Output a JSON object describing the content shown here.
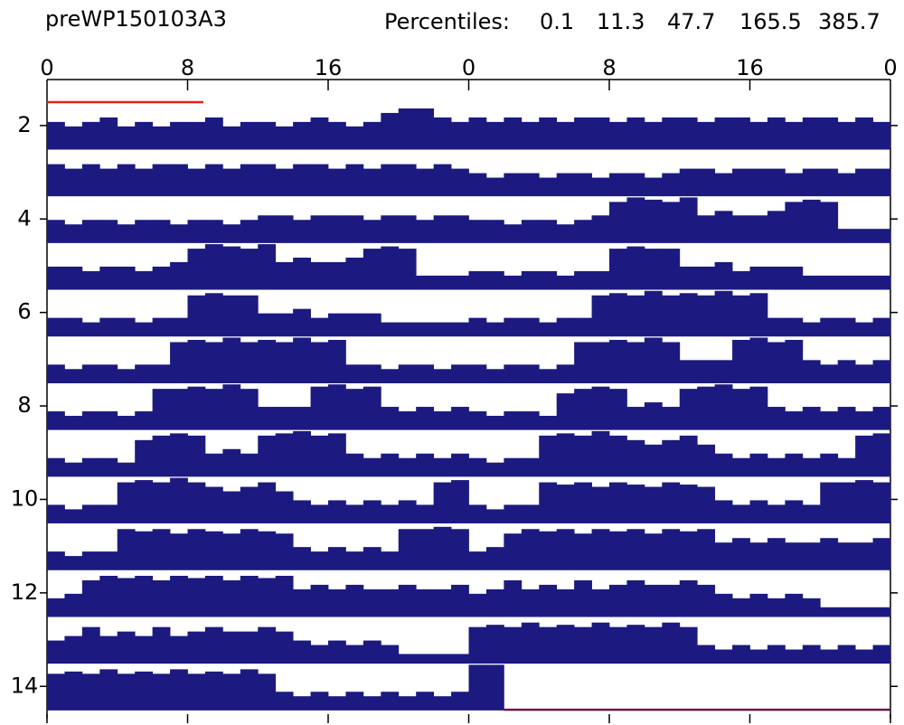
{
  "chart_data": {
    "type": "actogram",
    "title": "preWP150103A3",
    "percentiles_label": "Percentiles:",
    "percentiles": [
      0.1,
      11.3,
      47.7,
      165.5,
      385.7
    ],
    "xlim": [
      0,
      48
    ],
    "xticks": [
      0,
      8,
      16,
      {
        "value": 24,
        "label": "0"
      },
      {
        "value": 32,
        "label": "8"
      },
      {
        "value": 40,
        "label": "16"
      },
      {
        "value": 48,
        "label": "0"
      }
    ],
    "row_labels": [
      2,
      null,
      4,
      null,
      6,
      null,
      8,
      null,
      10,
      null,
      12,
      null,
      14
    ],
    "color": "#1c1a80",
    "missing_color": "#e8211c",
    "days": [
      [
        0.6,
        0.5,
        0.6,
        0.7,
        0.5,
        0.6,
        0.5,
        0.6,
        0.6,
        0.7,
        0.5,
        0.6,
        0.6,
        0.5,
        0.6,
        0.7,
        0.6,
        0.5,
        0.6,
        0.8,
        0.9,
        0.9,
        0.7,
        0.6
      ],
      [
        0.7,
        0.6,
        0.7,
        0.6,
        0.7,
        0.6,
        0.7,
        0.7,
        0.6,
        0.7,
        0.6,
        0.7,
        0.7,
        0.6,
        0.7,
        0.7,
        0.6,
        0.7,
        0.6,
        0.7,
        0.7,
        0.6,
        0.7,
        0.6
      ],
      [
        0.5,
        0.4,
        0.5,
        0.5,
        0.4,
        0.5,
        0.5,
        0.4,
        0.5,
        0.5,
        0.4,
        0.5,
        0.6,
        0.6,
        0.5,
        0.6,
        0.6,
        0.6,
        0.5,
        0.6,
        0.6,
        0.5,
        0.6,
        0.6
      ],
      [
        0.5,
        0.5,
        0.4,
        0.5,
        0.5,
        0.4,
        0.5,
        0.6,
        0.9,
        1,
        0.95,
        0.9,
        1,
        0.6,
        0.7,
        0.6,
        0.6,
        0.7,
        0.9,
        0.95,
        0.9,
        0.3,
        0.3,
        0.3
      ],
      [
        0.4,
        0.4,
        0.3,
        0.4,
        0.4,
        0.3,
        0.4,
        0.4,
        0.9,
        0.95,
        0.9,
        0.9,
        0.5,
        0.5,
        0.6,
        0.4,
        0.5,
        0.5,
        0.5,
        0.3,
        0.3,
        0.3,
        0.3,
        0.3
      ],
      [
        0.4,
        0.3,
        0.4,
        0.4,
        0.3,
        0.4,
        0.4,
        0.9,
        0.95,
        0.9,
        1,
        0.9,
        0.95,
        0.9,
        1,
        0.9,
        0.95,
        0.4,
        0.4,
        0.3,
        0.4,
        0.4,
        0.3,
        0.4
      ],
      [
        0.4,
        0.3,
        0.4,
        0.4,
        0.3,
        0.4,
        0.9,
        0.9,
        0.95,
        0.9,
        1,
        0.9,
        0.5,
        0.5,
        0.5,
        0.95,
        1,
        0.9,
        0.95,
        0.5,
        0.4,
        0.5,
        0.4,
        0.5
      ],
      [
        0.4,
        0.3,
        0.4,
        0.4,
        0.3,
        0.8,
        0.9,
        0.95,
        0.9,
        0.5,
        0.6,
        0.5,
        0.9,
        0.95,
        1,
        0.9,
        0.95,
        0.5,
        0.4,
        0.5,
        0.4,
        0.5,
        0.4,
        0.5
      ],
      [
        0.4,
        0.3,
        0.4,
        0.4,
        0.9,
        0.95,
        0.9,
        1,
        0.9,
        0.8,
        0.7,
        0.8,
        0.9,
        0.7,
        0.5,
        0.4,
        0.5,
        0.4,
        0.5,
        0.4,
        0.5,
        0.4,
        0.9,
        0.95
      ],
      [
        0.4,
        0.3,
        0.4,
        0.4,
        0.9,
        0.85,
        0.9,
        0.8,
        0.9,
        0.85,
        0.8,
        0.9,
        0.85,
        0.8,
        0.5,
        0.4,
        0.5,
        0.4,
        0.5,
        0.4,
        0.9,
        0.9,
        0.95,
        0.9
      ],
      [
        0.4,
        0.5,
        0.8,
        0.9,
        0.85,
        0.9,
        0.8,
        0.9,
        0.85,
        0.9,
        0.8,
        0.9,
        0.85,
        0.9,
        0.6,
        0.7,
        0.6,
        0.7,
        0.6,
        0.6,
        0.7,
        0.6,
        0.6,
        0.7
      ],
      [
        0.5,
        0.6,
        0.8,
        0.6,
        0.7,
        0.6,
        0.8,
        0.6,
        0.7,
        0.8,
        0.7,
        0.7,
        0.8,
        0.7,
        0.5,
        0.4,
        0.5,
        0.4,
        0.5,
        0.4,
        0.2,
        0.2,
        0.2,
        0.2
      ],
      [
        0.8,
        0.85,
        0.8,
        0.9,
        0.8,
        0.85,
        0.8,
        0.9,
        0.8,
        0.85,
        0.8,
        0.9,
        0.8,
        0.4,
        0.3,
        0.4,
        0.3,
        0.4,
        0.3,
        0.4,
        0.3,
        0.4,
        0.3,
        0.4
      ],
      [
        1,
        1,
        null,
        null,
        null,
        null,
        null,
        null,
        null,
        null,
        null,
        null,
        null,
        null,
        null,
        null,
        null,
        null,
        null,
        null,
        null,
        null,
        null,
        null
      ]
    ]
  }
}
